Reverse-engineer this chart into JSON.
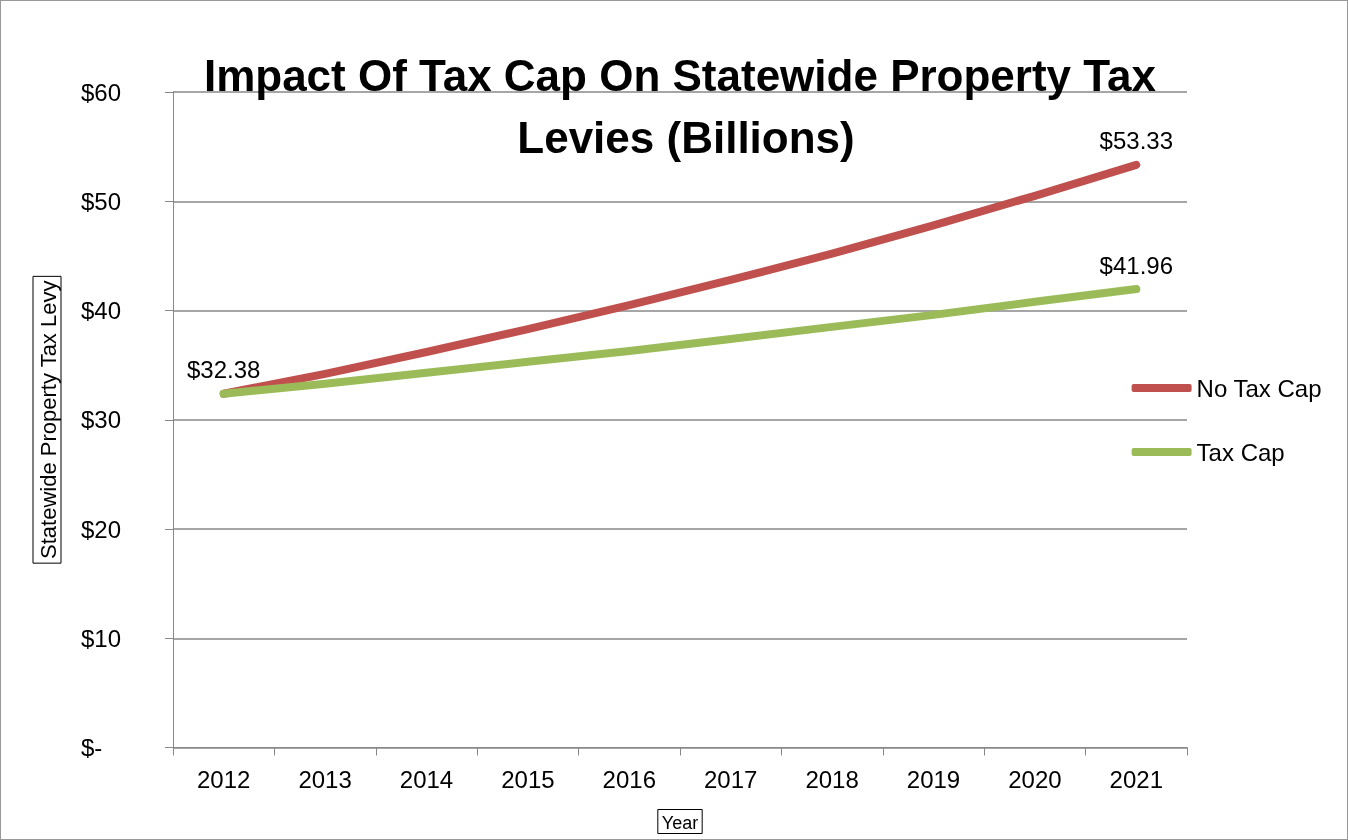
{
  "chart_data": {
    "type": "line",
    "title": "Impact Of Tax Cap On Statewide Property Tax Levies (Billions)",
    "xlabel": "Year",
    "ylabel": "Statewide Property Tax Levy",
    "categories": [
      "2012",
      "2013",
      "2014",
      "2015",
      "2016",
      "2017",
      "2018",
      "2019",
      "2020",
      "2021"
    ],
    "series": [
      {
        "name": "No Tax Cap",
        "color": "#c0504d",
        "values": [
          32.38,
          34.2,
          36.2,
          38.3,
          40.5,
          42.8,
          45.2,
          47.8,
          50.5,
          53.33
        ],
        "value_labels": [
          null,
          null,
          null,
          null,
          null,
          null,
          null,
          null,
          null,
          "$53.33"
        ]
      },
      {
        "name": "Tax Cap",
        "color": "#9bbb59",
        "values": [
          32.38,
          33.3,
          34.3,
          35.3,
          36.3,
          37.4,
          38.5,
          39.6,
          40.8,
          41.96
        ],
        "value_labels": [
          "$32.38",
          null,
          null,
          null,
          null,
          null,
          null,
          null,
          null,
          "$41.96"
        ]
      }
    ],
    "ylim": [
      0,
      60
    ],
    "yticks": [
      {
        "value": 0,
        "label": "$-"
      },
      {
        "value": 10,
        "label": "$10"
      },
      {
        "value": 20,
        "label": "$20"
      },
      {
        "value": 30,
        "label": "$30"
      },
      {
        "value": 40,
        "label": "$40"
      },
      {
        "value": 50,
        "label": "$50"
      },
      {
        "value": 60,
        "label": "$60"
      }
    ],
    "grid": "y",
    "legend": "right",
    "marker": "none",
    "line_style": "solid"
  }
}
